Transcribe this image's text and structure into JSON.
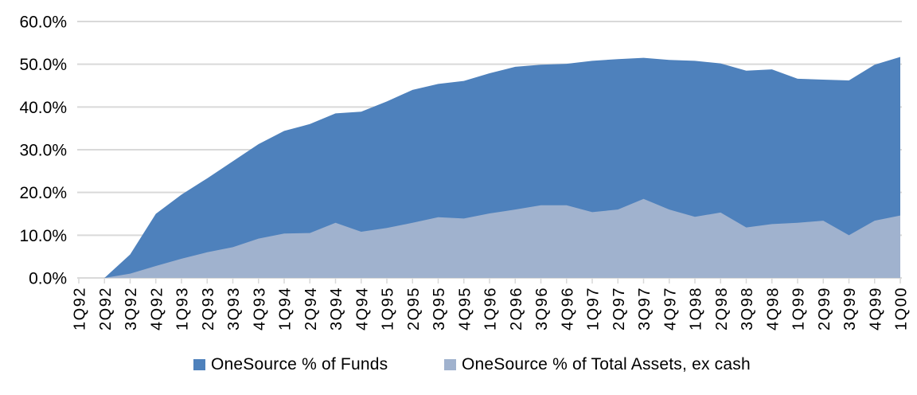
{
  "chart_data": {
    "type": "area",
    "mode": "overlapping",
    "title": "",
    "xlabel": "",
    "ylabel": "",
    "ylim": [
      0,
      60
    ],
    "grid": true,
    "gridline_color": "#d9d9d9",
    "axis_text_color": "#000000",
    "legend_position": "bottom",
    "y_tick_labels": [
      "0.0%",
      "10.0%",
      "20.0%",
      "30.0%",
      "40.0%",
      "50.0%",
      "60.0%"
    ],
    "y_tick_values": [
      0,
      10,
      20,
      30,
      40,
      50,
      60
    ],
    "categories": [
      "1Q92",
      "2Q92",
      "3Q92",
      "4Q92",
      "1Q93",
      "2Q93",
      "3Q93",
      "4Q93",
      "1Q94",
      "2Q94",
      "3Q94",
      "4Q94",
      "1Q95",
      "2Q95",
      "3Q95",
      "4Q95",
      "1Q96",
      "2Q96",
      "3Q96",
      "4Q96",
      "1Q97",
      "2Q97",
      "3Q97",
      "4Q97",
      "1Q98",
      "2Q98",
      "3Q98",
      "4Q98",
      "1Q99",
      "2Q99",
      "3Q99",
      "4Q99",
      "1Q00"
    ],
    "series": [
      {
        "name": "OneSource % of Funds",
        "color": "#4e81bc",
        "values": [
          0.0,
          0.0,
          5.5,
          15.0,
          19.5,
          23.3,
          27.3,
          31.3,
          34.4,
          36.0,
          38.5,
          38.9,
          41.3,
          44.0,
          45.4,
          46.1,
          47.9,
          49.4,
          49.9,
          50.1,
          50.8,
          51.2,
          51.5,
          51.0,
          50.8,
          50.2,
          48.5,
          48.8,
          46.6,
          46.4,
          46.2,
          49.9,
          51.7
        ]
      },
      {
        "name": "OneSource % of Total Assets, ex cash",
        "color": "#a0b2ce",
        "values": [
          0.0,
          0.0,
          1.0,
          2.8,
          4.5,
          6.0,
          7.2,
          9.2,
          10.4,
          10.5,
          12.9,
          10.8,
          11.7,
          12.9,
          14.2,
          13.9,
          15.1,
          16.0,
          17.0,
          17.0,
          15.4,
          16.0,
          18.5,
          16.0,
          14.3,
          15.3,
          11.8,
          12.6,
          12.9,
          13.4,
          10.0,
          13.4,
          14.6
        ]
      }
    ]
  }
}
